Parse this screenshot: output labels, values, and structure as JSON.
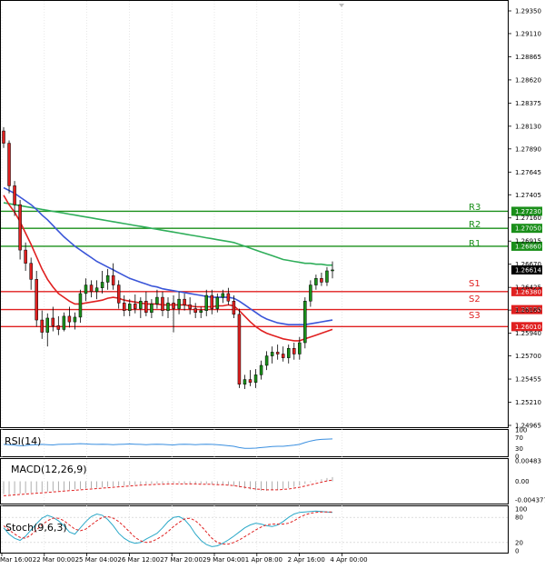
{
  "main_panel": {
    "price_ticks": [
      "1.29350",
      "1.29110",
      "1.28865",
      "1.28620",
      "1.28375",
      "1.28130",
      "1.27890",
      "1.27645",
      "1.27405",
      "1.27160",
      "1.26915",
      "1.26670",
      "1.26425",
      "1.26185",
      "1.25940",
      "1.25700",
      "1.25455",
      "1.25210",
      "1.24965"
    ],
    "current_price": "1.26614",
    "levels": [
      {
        "id": "R3",
        "label": "R3",
        "value": 1.2723,
        "value_label": "1.27230",
        "color": "#1a8f1a"
      },
      {
        "id": "R2",
        "label": "R2",
        "value": 1.2705,
        "value_label": "1.27050",
        "color": "#1a8f1a"
      },
      {
        "id": "R1",
        "label": "R1",
        "value": 1.2686,
        "value_label": "1.26860",
        "color": "#1a8f1a"
      },
      {
        "id": "S1",
        "label": "S1",
        "value": 1.2638,
        "value_label": "1.26380",
        "color": "#e02020"
      },
      {
        "id": "S2",
        "label": "S2",
        "value": 1.2619,
        "value_label": "1.26190",
        "color": "#e02020"
      },
      {
        "id": "S3",
        "label": "S3",
        "value": 1.2601,
        "value_label": "1.26010",
        "color": "#e02020"
      }
    ]
  },
  "rsi_panel": {
    "title": "RSI(14)",
    "ticks": [
      "100",
      "70",
      "30",
      "0"
    ]
  },
  "macd_panel": {
    "title": "MACD(12,26,9)",
    "ticks": [
      "0.00483",
      "0.00",
      "-0.004377"
    ]
  },
  "stoch_panel": {
    "title": "Stoch(9,6,3)",
    "ticks": [
      "100",
      "80",
      "20",
      "0"
    ]
  },
  "time_axis": {
    "labels": [
      "Mar 16:00",
      "22 Mar 00:00",
      "25 Mar 04:00",
      "26 Mar 12:00",
      "27 Mar 20:00",
      "29 Mar 04:00",
      "1 Apr 08:00",
      "2 Apr 16:00",
      "4 Apr 00:00"
    ]
  },
  "colors": {
    "bull_candle": "#1a8f1a",
    "bear_candle": "#e02020",
    "ma_fast": "#e02020",
    "ma_mid": "#3a55d8",
    "ma_slow": "#2fae5a",
    "rsi_line": "#3a8fe0",
    "stoch_k": "#2aa8c8",
    "stoch_d": "#e02020"
  },
  "chart_data": {
    "type": "candlestick",
    "instrument_hint": "",
    "price_axis_range": [
      1.24965,
      1.2935
    ],
    "candles": [
      {
        "o": 1.2808,
        "h": 1.2812,
        "l": 1.279,
        "c": 1.2795
      },
      {
        "o": 1.2795,
        "h": 1.2798,
        "l": 1.2742,
        "c": 1.275
      },
      {
        "o": 1.275,
        "h": 1.2755,
        "l": 1.2718,
        "c": 1.273
      },
      {
        "o": 1.273,
        "h": 1.2735,
        "l": 1.2672,
        "c": 1.2682
      },
      {
        "o": 1.2682,
        "h": 1.269,
        "l": 1.266,
        "c": 1.2668
      },
      {
        "o": 1.2668,
        "h": 1.2674,
        "l": 1.264,
        "c": 1.2651
      },
      {
        "o": 1.2651,
        "h": 1.266,
        "l": 1.2601,
        "c": 1.2608
      },
      {
        "o": 1.2608,
        "h": 1.2618,
        "l": 1.2588,
        "c": 1.2595
      },
      {
        "o": 1.2595,
        "h": 1.2615,
        "l": 1.258,
        "c": 1.261
      },
      {
        "o": 1.261,
        "h": 1.2622,
        "l": 1.2596,
        "c": 1.2602
      },
      {
        "o": 1.2602,
        "h": 1.2612,
        "l": 1.2592,
        "c": 1.2598
      },
      {
        "o": 1.2598,
        "h": 1.2616,
        "l": 1.2596,
        "c": 1.2612
      },
      {
        "o": 1.2612,
        "h": 1.2622,
        "l": 1.26,
        "c": 1.2606
      },
      {
        "o": 1.2606,
        "h": 1.2616,
        "l": 1.2598,
        "c": 1.2611
      },
      {
        "o": 1.2611,
        "h": 1.264,
        "l": 1.2605,
        "c": 1.2636
      },
      {
        "o": 1.2636,
        "h": 1.2652,
        "l": 1.2628,
        "c": 1.2645
      },
      {
        "o": 1.2645,
        "h": 1.265,
        "l": 1.2632,
        "c": 1.2638
      },
      {
        "o": 1.2638,
        "h": 1.265,
        "l": 1.263,
        "c": 1.2642
      },
      {
        "o": 1.2642,
        "h": 1.266,
        "l": 1.2636,
        "c": 1.2648
      },
      {
        "o": 1.2648,
        "h": 1.2662,
        "l": 1.264,
        "c": 1.2655
      },
      {
        "o": 1.2655,
        "h": 1.2668,
        "l": 1.264,
        "c": 1.2645
      },
      {
        "o": 1.2645,
        "h": 1.265,
        "l": 1.262,
        "c": 1.2626
      },
      {
        "o": 1.2626,
        "h": 1.2634,
        "l": 1.2612,
        "c": 1.2618
      },
      {
        "o": 1.2618,
        "h": 1.263,
        "l": 1.2612,
        "c": 1.2625
      },
      {
        "o": 1.2625,
        "h": 1.2635,
        "l": 1.2615,
        "c": 1.262
      },
      {
        "o": 1.262,
        "h": 1.2632,
        "l": 1.261,
        "c": 1.2628
      },
      {
        "o": 1.2628,
        "h": 1.2638,
        "l": 1.2612,
        "c": 1.2616
      },
      {
        "o": 1.2616,
        "h": 1.263,
        "l": 1.261,
        "c": 1.2625
      },
      {
        "o": 1.2625,
        "h": 1.264,
        "l": 1.262,
        "c": 1.2632
      },
      {
        "o": 1.2632,
        "h": 1.2638,
        "l": 1.2612,
        "c": 1.2618
      },
      {
        "o": 1.2618,
        "h": 1.2632,
        "l": 1.261,
        "c": 1.2626
      },
      {
        "o": 1.2626,
        "h": 1.2634,
        "l": 1.2595,
        "c": 1.262
      },
      {
        "o": 1.262,
        "h": 1.2638,
        "l": 1.2614,
        "c": 1.263
      },
      {
        "o": 1.263,
        "h": 1.2636,
        "l": 1.2618,
        "c": 1.2624
      },
      {
        "o": 1.2624,
        "h": 1.2632,
        "l": 1.2614,
        "c": 1.262
      },
      {
        "o": 1.262,
        "h": 1.2626,
        "l": 1.261,
        "c": 1.2616
      },
      {
        "o": 1.2616,
        "h": 1.2622,
        "l": 1.261,
        "c": 1.2618
      },
      {
        "o": 1.2618,
        "h": 1.264,
        "l": 1.2612,
        "c": 1.2634
      },
      {
        "o": 1.2634,
        "h": 1.264,
        "l": 1.2614,
        "c": 1.262
      },
      {
        "o": 1.262,
        "h": 1.2636,
        "l": 1.2616,
        "c": 1.2632
      },
      {
        "o": 1.2632,
        "h": 1.264,
        "l": 1.2626,
        "c": 1.2636
      },
      {
        "o": 1.2636,
        "h": 1.2642,
        "l": 1.2624,
        "c": 1.2628
      },
      {
        "o": 1.2628,
        "h": 1.2634,
        "l": 1.261,
        "c": 1.2614
      },
      {
        "o": 1.2614,
        "h": 1.262,
        "l": 1.2536,
        "c": 1.254
      },
      {
        "o": 1.254,
        "h": 1.255,
        "l": 1.2535,
        "c": 1.2545
      },
      {
        "o": 1.2545,
        "h": 1.2555,
        "l": 1.2538,
        "c": 1.2542
      },
      {
        "o": 1.2542,
        "h": 1.2556,
        "l": 1.2536,
        "c": 1.255
      },
      {
        "o": 1.255,
        "h": 1.2565,
        "l": 1.2545,
        "c": 1.256
      },
      {
        "o": 1.256,
        "h": 1.2575,
        "l": 1.2555,
        "c": 1.257
      },
      {
        "o": 1.257,
        "h": 1.258,
        "l": 1.2562,
        "c": 1.2574
      },
      {
        "o": 1.2574,
        "h": 1.2582,
        "l": 1.2566,
        "c": 1.2572
      },
      {
        "o": 1.2572,
        "h": 1.258,
        "l": 1.2564,
        "c": 1.2568
      },
      {
        "o": 1.2568,
        "h": 1.2582,
        "l": 1.2562,
        "c": 1.2578
      },
      {
        "o": 1.2578,
        "h": 1.2584,
        "l": 1.2566,
        "c": 1.2572
      },
      {
        "o": 1.2572,
        "h": 1.259,
        "l": 1.2566,
        "c": 1.2584
      },
      {
        "o": 1.2584,
        "h": 1.2632,
        "l": 1.2578,
        "c": 1.2628
      },
      {
        "o": 1.2628,
        "h": 1.265,
        "l": 1.2622,
        "c": 1.2645
      },
      {
        "o": 1.2645,
        "h": 1.2656,
        "l": 1.264,
        "c": 1.2652
      },
      {
        "o": 1.2652,
        "h": 1.2658,
        "l": 1.2644,
        "c": 1.2648
      },
      {
        "o": 1.2648,
        "h": 1.2664,
        "l": 1.2644,
        "c": 1.266
      },
      {
        "o": 1.266,
        "h": 1.267,
        "l": 1.2652,
        "c": 1.2661
      }
    ],
    "series": [
      {
        "key": "ma_fast",
        "values": [
          1.274,
          1.273,
          1.2722,
          1.2712,
          1.27,
          1.2688,
          1.2675,
          1.2662,
          1.2651,
          1.2643,
          1.2636,
          1.2632,
          1.2628,
          1.2625,
          1.2625,
          1.2626,
          1.2627,
          1.2628,
          1.2629,
          1.2631,
          1.2632,
          1.2631,
          1.2629,
          1.2628,
          1.2627,
          1.2626,
          1.2625,
          1.2625,
          1.2625,
          1.2624,
          1.2624,
          1.2624,
          1.2624,
          1.2624,
          1.2623,
          1.2622,
          1.2622,
          1.2622,
          1.2622,
          1.2623,
          1.2623,
          1.2624,
          1.2623,
          1.2618,
          1.2612,
          1.2606,
          1.2601,
          1.2597,
          1.2594,
          1.2592,
          1.259,
          1.2588,
          1.2587,
          1.2586,
          1.2586,
          1.2588,
          1.259,
          1.2592,
          1.2594,
          1.2596,
          1.2598
        ]
      },
      {
        "key": "ma_mid",
        "values": [
          1.2748,
          1.2745,
          1.2742,
          1.2738,
          1.2734,
          1.273,
          1.2725,
          1.2719,
          1.2714,
          1.2708,
          1.2702,
          1.2696,
          1.2691,
          1.2686,
          1.2682,
          1.2678,
          1.2674,
          1.267,
          1.2667,
          1.2664,
          1.2661,
          1.2658,
          1.2655,
          1.2652,
          1.265,
          1.2648,
          1.2646,
          1.2644,
          1.2643,
          1.2641,
          1.264,
          1.2639,
          1.2638,
          1.2637,
          1.2636,
          1.2635,
          1.2634,
          1.2633,
          1.2632,
          1.2632,
          1.2632,
          1.2632,
          1.2631,
          1.2628,
          1.2624,
          1.262,
          1.2616,
          1.2612,
          1.2609,
          1.2607,
          1.2605,
          1.2604,
          1.2603,
          1.2603,
          1.2603,
          1.2603,
          1.2604,
          1.2605,
          1.2606,
          1.2607,
          1.2608
        ]
      },
      {
        "key": "ma_slow",
        "values": [
          1.2732,
          1.2731,
          1.273,
          1.2729,
          1.2728,
          1.2727,
          1.2726,
          1.2725,
          1.2724,
          1.2723,
          1.2722,
          1.2721,
          1.272,
          1.2719,
          1.2718,
          1.2717,
          1.2716,
          1.2715,
          1.2714,
          1.2713,
          1.2712,
          1.2711,
          1.271,
          1.2709,
          1.2708,
          1.2707,
          1.2706,
          1.2705,
          1.2704,
          1.2703,
          1.2702,
          1.2701,
          1.27,
          1.2699,
          1.2698,
          1.2697,
          1.2696,
          1.2695,
          1.2694,
          1.2693,
          1.2692,
          1.2691,
          1.269,
          1.2688,
          1.2686,
          1.2684,
          1.2682,
          1.268,
          1.2678,
          1.2676,
          1.2674,
          1.2672,
          1.2671,
          1.267,
          1.2669,
          1.2668,
          1.2668,
          1.2667,
          1.2667,
          1.2666,
          1.2666
        ]
      },
      {
        "key": "rsi",
        "values": [
          45,
          44,
          42,
          40,
          41,
          43,
          44,
          45,
          44,
          43,
          45,
          46,
          46,
          47,
          48,
          47,
          46,
          45,
          46,
          45,
          44,
          45,
          46,
          47,
          46,
          45,
          44,
          45,
          46,
          45,
          44,
          43,
          45,
          46,
          45,
          44,
          45,
          46,
          45,
          44,
          42,
          40,
          38,
          33,
          30,
          30,
          31,
          33,
          35,
          37,
          38,
          38,
          40,
          42,
          45,
          52,
          58,
          62,
          64,
          65,
          66
        ]
      },
      {
        "key": "stoch_k",
        "values": [
          55,
          40,
          30,
          25,
          35,
          50,
          65,
          78,
          85,
          80,
          72,
          60,
          45,
          40,
          55,
          70,
          82,
          88,
          85,
          75,
          60,
          42,
          30,
          22,
          18,
          20,
          28,
          35,
          42,
          55,
          70,
          80,
          82,
          75,
          60,
          40,
          25,
          15,
          10,
          12,
          18,
          26,
          35,
          45,
          55,
          62,
          66,
          64,
          60,
          58,
          62,
          70,
          80,
          88,
          92,
          93,
          94,
          95,
          94,
          93,
          92
        ]
      },
      {
        "key": "stoch_d",
        "values": [
          60,
          50,
          40,
          32,
          30,
          38,
          50,
          62,
          72,
          78,
          78,
          72,
          62,
          52,
          48,
          52,
          62,
          72,
          80,
          82,
          78,
          70,
          58,
          45,
          32,
          24,
          20,
          22,
          28,
          36,
          46,
          58,
          68,
          76,
          78,
          72,
          60,
          45,
          30,
          20,
          16,
          16,
          20,
          26,
          34,
          42,
          50,
          57,
          62,
          64,
          64,
          64,
          66,
          72,
          80,
          86,
          90,
          92,
          93,
          93,
          93
        ]
      },
      {
        "key": "macd_hist",
        "values": [
          -0.003,
          -0.0031,
          -0.003,
          -0.0029,
          -0.0028,
          -0.0027,
          -0.0026,
          -0.0025,
          -0.0024,
          -0.0023,
          -0.0022,
          -0.0021,
          -0.002,
          -0.0019,
          -0.0018,
          -0.0017,
          -0.0016,
          -0.0015,
          -0.0014,
          -0.0013,
          -0.0012,
          -0.0011,
          -0.001,
          -0.0009,
          -0.0008,
          -0.0007,
          -0.0006,
          -0.0006,
          -0.0005,
          -0.0005,
          -0.0004,
          -0.0004,
          -0.0004,
          -0.0005,
          -0.0005,
          -0.0006,
          -0.0006,
          -0.0006,
          -0.0007,
          -0.0007,
          -0.0008,
          -0.0009,
          -0.0011,
          -0.0014,
          -0.0017,
          -0.0019,
          -0.0021,
          -0.0022,
          -0.0022,
          -0.0021,
          -0.002,
          -0.0018,
          -0.0016,
          -0.0013,
          -0.001,
          -0.0006,
          -0.0002,
          0.0002,
          0.0005,
          0.0008,
          0.001
        ]
      },
      {
        "key": "macd_signal",
        "values": [
          -0.0034,
          -0.0033,
          -0.0032,
          -0.0031,
          -0.003,
          -0.0029,
          -0.0028,
          -0.0027,
          -0.0026,
          -0.0025,
          -0.0024,
          -0.0023,
          -0.0022,
          -0.0021,
          -0.002,
          -0.0019,
          -0.0018,
          -0.0017,
          -0.0016,
          -0.0015,
          -0.0014,
          -0.0013,
          -0.0012,
          -0.0011,
          -0.001,
          -0.0009,
          -0.0008,
          -0.0008,
          -0.0007,
          -0.0007,
          -0.0006,
          -0.0006,
          -0.0006,
          -0.0006,
          -0.0006,
          -0.0006,
          -0.0007,
          -0.0007,
          -0.0007,
          -0.0008,
          -0.0008,
          -0.0009,
          -0.001,
          -0.0012,
          -0.0014,
          -0.0016,
          -0.0018,
          -0.0019,
          -0.002,
          -0.002,
          -0.002,
          -0.0019,
          -0.0018,
          -0.0016,
          -0.0014,
          -0.0011,
          -0.0008,
          -0.0005,
          -0.0002,
          0.0001,
          0.0003
        ]
      }
    ]
  }
}
